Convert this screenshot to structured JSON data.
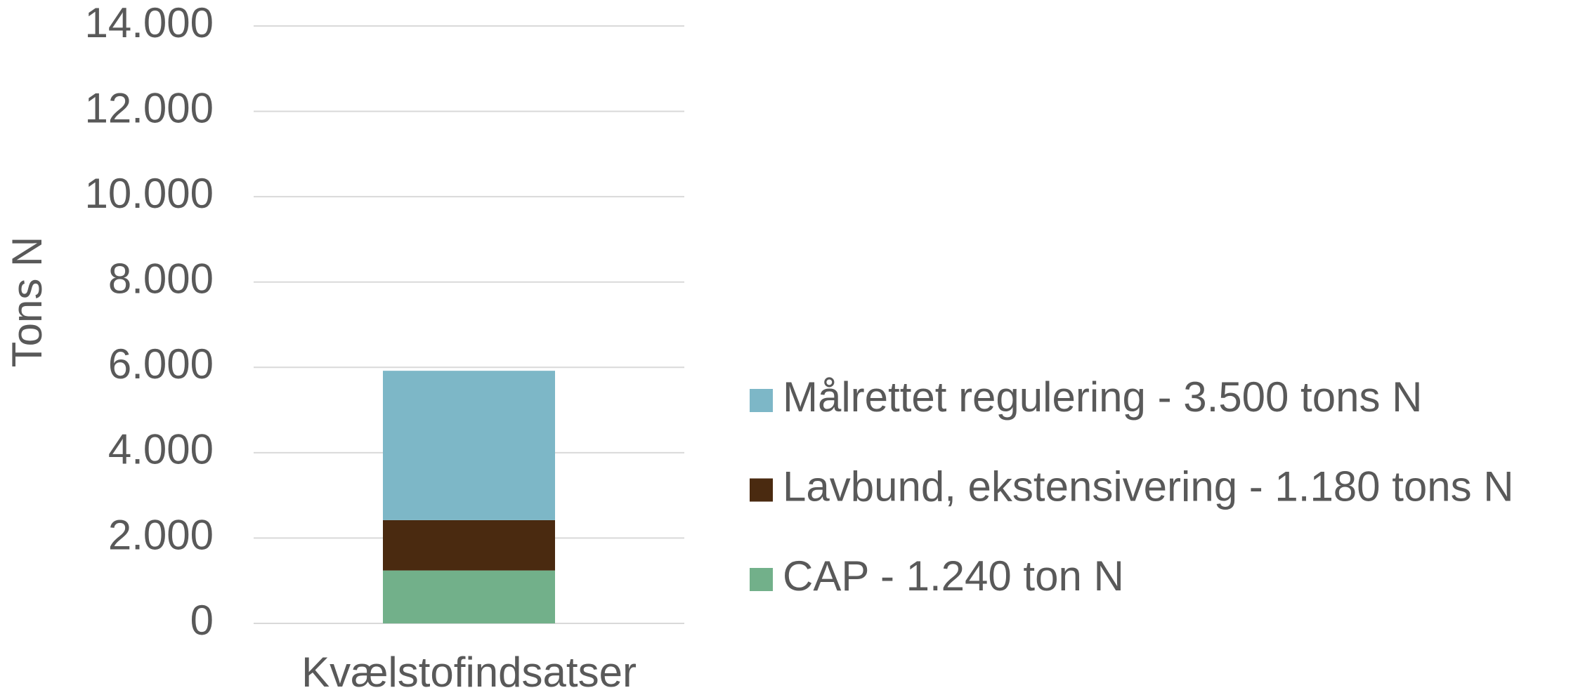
{
  "chart_data": {
    "type": "stacked_bar",
    "y_label": "Tons N",
    "categories": [
      "Kvælstofindsatser"
    ],
    "series": [
      {
        "name": "CAP - 1.240 ton N",
        "color": "#72b08a",
        "values": [
          1240
        ]
      },
      {
        "name": "Lavbund, ekstensivering - 1.180 tons N",
        "color": "#4a2a10",
        "values": [
          1180
        ]
      },
      {
        "name": "Målrettet regulering - 3.500 tons N",
        "color": "#7db7c7",
        "values": [
          3500
        ]
      }
    ],
    "ylim": [
      0,
      14000
    ],
    "yticks": [
      0,
      {
        "value": 2000,
        "label": "2.000"
      },
      {
        "value": 4000,
        "label": "4.000"
      },
      {
        "value": 6000,
        "label": "6.000"
      },
      {
        "value": 8000,
        "label": "8.000"
      },
      {
        "value": 10000,
        "label": "10.000"
      },
      {
        "value": 12000,
        "label": "12.000"
      },
      {
        "value": 14000,
        "label": "14.000"
      }
    ],
    "grid": true,
    "legend": "right"
  }
}
